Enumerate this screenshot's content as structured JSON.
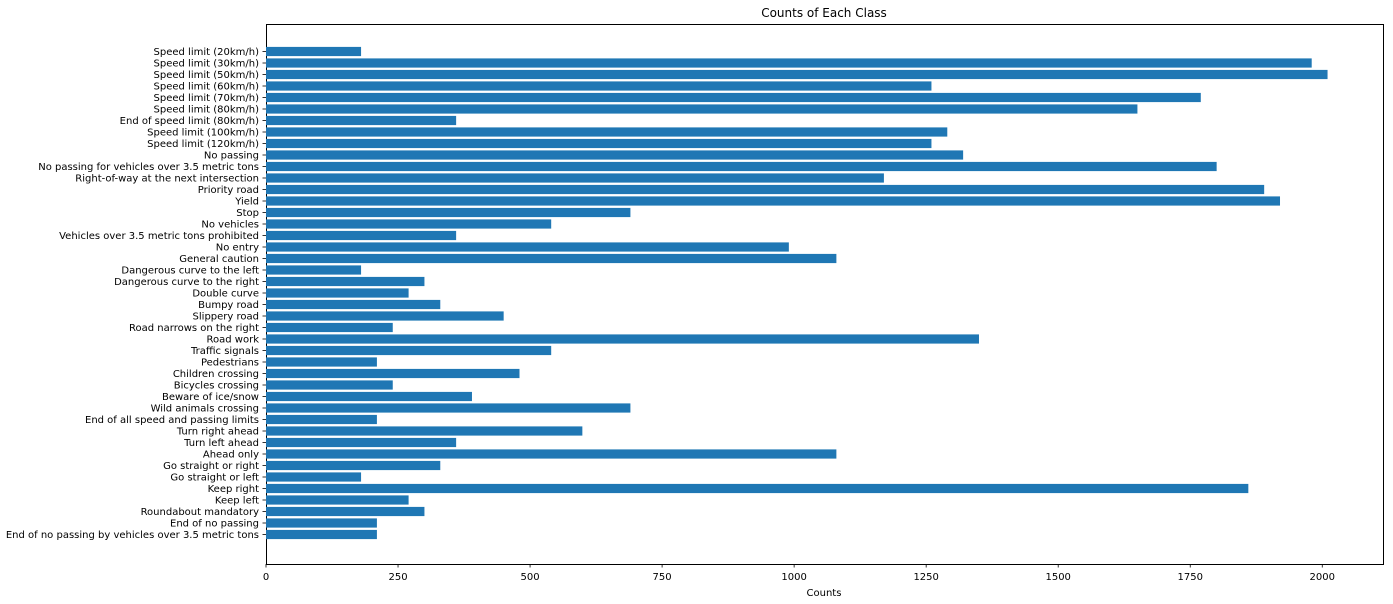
{
  "chart_data": {
    "type": "bar",
    "orientation": "horizontal",
    "title": "Counts of Each Class",
    "xlabel": "Counts",
    "ylabel": "",
    "xlim": [
      0,
      2115
    ],
    "xticks": [
      0,
      250,
      500,
      750,
      1000,
      1250,
      1500,
      1750,
      2000
    ],
    "bar_color": "#1f77b4",
    "grid": false,
    "categories": [
      "Speed limit (20km/h)",
      "Speed limit (30km/h)",
      "Speed limit (50km/h)",
      "Speed limit (60km/h)",
      "Speed limit (70km/h)",
      "Speed limit (80km/h)",
      "End of speed limit (80km/h)",
      "Speed limit (100km/h)",
      "Speed limit (120km/h)",
      "No passing",
      "No passing for vehicles over 3.5 metric tons",
      "Right-of-way at the next intersection",
      "Priority road",
      "Yield",
      "Stop",
      "No vehicles",
      "Vehicles over 3.5 metric tons prohibited",
      "No entry",
      "General caution",
      "Dangerous curve to the left",
      "Dangerous curve to the right",
      "Double curve",
      "Bumpy road",
      "Slippery road",
      "Road narrows on the right",
      "Road work",
      "Traffic signals",
      "Pedestrians",
      "Children crossing",
      "Bicycles crossing",
      "Beware of ice/snow",
      "Wild animals crossing",
      "End of all speed and passing limits",
      "Turn right ahead",
      "Turn left ahead",
      "Ahead only",
      "Go straight or right",
      "Go straight or left",
      "Keep right",
      "Keep left",
      "Roundabout mandatory",
      "End of no passing",
      "End of no passing by vehicles over 3.5 metric tons"
    ],
    "values": [
      180,
      1980,
      2010,
      1260,
      1770,
      1650,
      360,
      1290,
      1260,
      1320,
      1800,
      1170,
      1890,
      1920,
      690,
      540,
      360,
      990,
      1080,
      180,
      300,
      270,
      330,
      450,
      240,
      1350,
      540,
      210,
      480,
      240,
      390,
      690,
      210,
      599,
      360,
      1080,
      330,
      180,
      1860,
      270,
      300,
      210,
      210
    ]
  }
}
